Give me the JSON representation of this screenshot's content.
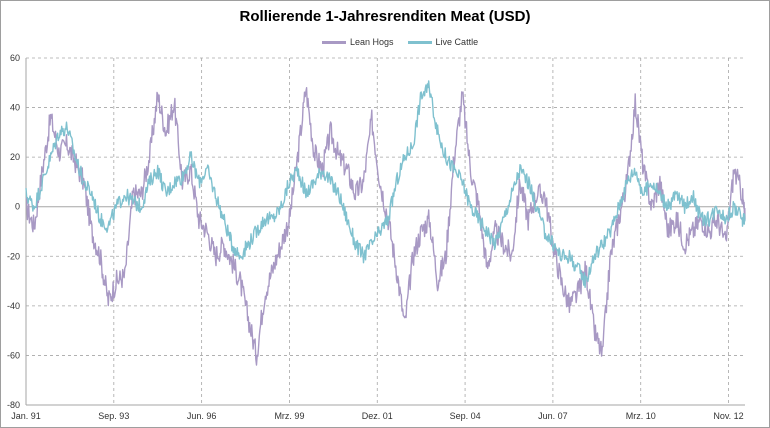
{
  "colors": {
    "lean_hogs": "#a899c4",
    "live_cattle": "#7fc1cf",
    "grid": "#a6a6a6",
    "axis": "#a6a6a6",
    "zero_line": "#a6a6a6"
  },
  "chart_data": {
    "type": "line",
    "title": "Rollierende 1-Jahresrenditen Meat (USD)",
    "xlabel": "",
    "ylabel": "",
    "ylim": [
      -80,
      60
    ],
    "yticks": [
      60,
      40,
      20,
      0,
      -20,
      -40,
      -60,
      -80
    ],
    "xticks": [
      "Jan. 91",
      "Sep. 93",
      "Jun. 96",
      "Mrz. 99",
      "Dez. 01",
      "Sep. 04",
      "Jun. 07",
      "Mrz. 10",
      "Nov. 12"
    ],
    "x_range": [
      "Jan. 91",
      "Nov. 12"
    ],
    "grid": "dashed, major x and y",
    "legend_position": "top-center",
    "series": [
      {
        "name": "Lean Hogs",
        "color_key": "lean_hogs",
        "x": [
          "1991-01",
          "1991-04",
          "1991-07",
          "1991-10",
          "1992-01",
          "1992-04",
          "1992-07",
          "1992-10",
          "1993-01",
          "1993-04",
          "1993-07",
          "1993-10",
          "1994-01",
          "1994-04",
          "1994-07",
          "1994-10",
          "1995-01",
          "1995-04",
          "1995-07",
          "1995-10",
          "1996-01",
          "1996-04",
          "1996-07",
          "1996-10",
          "1997-01",
          "1997-04",
          "1997-07",
          "1997-10",
          "1998-01",
          "1998-04",
          "1998-07",
          "1998-10",
          "1999-01",
          "1999-04",
          "1999-07",
          "1999-10",
          "2000-01",
          "2000-04",
          "2000-07",
          "2000-10",
          "2001-01",
          "2001-04",
          "2001-07",
          "2001-10",
          "2002-01",
          "2002-04",
          "2002-07",
          "2002-10",
          "2003-01",
          "2003-04",
          "2003-07",
          "2003-10",
          "2004-01",
          "2004-04",
          "2004-07",
          "2004-10",
          "2005-01",
          "2005-04",
          "2005-07",
          "2005-10",
          "2006-01",
          "2006-04",
          "2006-07",
          "2006-10",
          "2007-01",
          "2007-04",
          "2007-07",
          "2007-10",
          "2008-01",
          "2008-04",
          "2008-07",
          "2008-10",
          "2009-01",
          "2009-04",
          "2009-07",
          "2009-10",
          "2010-01",
          "2010-04",
          "2010-07",
          "2010-10",
          "2011-01",
          "2011-04",
          "2011-07",
          "2011-10",
          "2012-01",
          "2012-04",
          "2012-07",
          "2012-10",
          "2012-11"
        ],
        "values": [
          0,
          -8,
          15,
          36,
          22,
          25,
          18,
          10,
          -10,
          -20,
          -38,
          -30,
          -28,
          5,
          5,
          20,
          45,
          30,
          42,
          10,
          15,
          -5,
          -10,
          -20,
          -15,
          -22,
          -30,
          -45,
          -60,
          -35,
          -25,
          -15,
          -5,
          20,
          48,
          22,
          15,
          30,
          20,
          15,
          5,
          10,
          35,
          10,
          -5,
          -25,
          -48,
          -20,
          -10,
          -5,
          -30,
          -20,
          20,
          45,
          15,
          0,
          -25,
          -10,
          -15,
          -20,
          10,
          -5,
          5,
          5,
          -15,
          -30,
          -40,
          -35,
          -25,
          -50,
          -60,
          -20,
          -5,
          10,
          42,
          15,
          0,
          10,
          -10,
          -5,
          -15,
          -10,
          -5,
          -10,
          -5,
          -15,
          15,
          5,
          -5
        ]
      },
      {
        "name": "Live Cattle",
        "color_key": "live_cattle",
        "x": [
          "1991-01",
          "1991-04",
          "1991-07",
          "1991-10",
          "1992-01",
          "1992-04",
          "1992-07",
          "1992-10",
          "1993-01",
          "1993-04",
          "1993-07",
          "1993-10",
          "1994-01",
          "1994-04",
          "1994-07",
          "1994-10",
          "1995-01",
          "1995-04",
          "1995-07",
          "1995-10",
          "1996-01",
          "1996-04",
          "1996-07",
          "1996-10",
          "1997-01",
          "1997-04",
          "1997-07",
          "1997-10",
          "1998-01",
          "1998-04",
          "1998-07",
          "1998-10",
          "1999-01",
          "1999-04",
          "1999-07",
          "1999-10",
          "2000-01",
          "2000-04",
          "2000-07",
          "2000-10",
          "2001-01",
          "2001-04",
          "2001-07",
          "2001-10",
          "2002-01",
          "2002-04",
          "2002-07",
          "2002-10",
          "2003-01",
          "2003-04",
          "2003-07",
          "2003-10",
          "2004-01",
          "2004-04",
          "2004-07",
          "2004-10",
          "2005-01",
          "2005-04",
          "2005-07",
          "2005-10",
          "2006-01",
          "2006-04",
          "2006-07",
          "2006-10",
          "2007-01",
          "2007-04",
          "2007-07",
          "2007-10",
          "2008-01",
          "2008-04",
          "2008-07",
          "2008-10",
          "2009-01",
          "2009-04",
          "2009-07",
          "2009-10",
          "2010-01",
          "2010-04",
          "2010-07",
          "2010-10",
          "2011-01",
          "2011-04",
          "2011-07",
          "2011-10",
          "2012-01",
          "2012-04",
          "2012-07",
          "2012-10",
          "2012-11"
        ],
        "values": [
          5,
          0,
          10,
          20,
          30,
          32,
          20,
          10,
          5,
          -5,
          -8,
          0,
          5,
          2,
          0,
          10,
          15,
          5,
          10,
          12,
          20,
          10,
          15,
          5,
          -5,
          -15,
          -20,
          -15,
          -10,
          -5,
          -5,
          0,
          10,
          15,
          5,
          10,
          15,
          10,
          5,
          -5,
          -15,
          -20,
          -15,
          -10,
          -5,
          10,
          20,
          25,
          45,
          48,
          30,
          20,
          15,
          10,
          0,
          -5,
          -10,
          -15,
          -5,
          5,
          15,
          10,
          0,
          -10,
          -15,
          -20,
          -20,
          -25,
          -30,
          -20,
          -15,
          -10,
          0,
          10,
          15,
          5,
          10,
          5,
          0,
          5,
          0,
          5,
          -5,
          -5,
          0,
          -5,
          0,
          -5,
          -5
        ]
      }
    ]
  }
}
